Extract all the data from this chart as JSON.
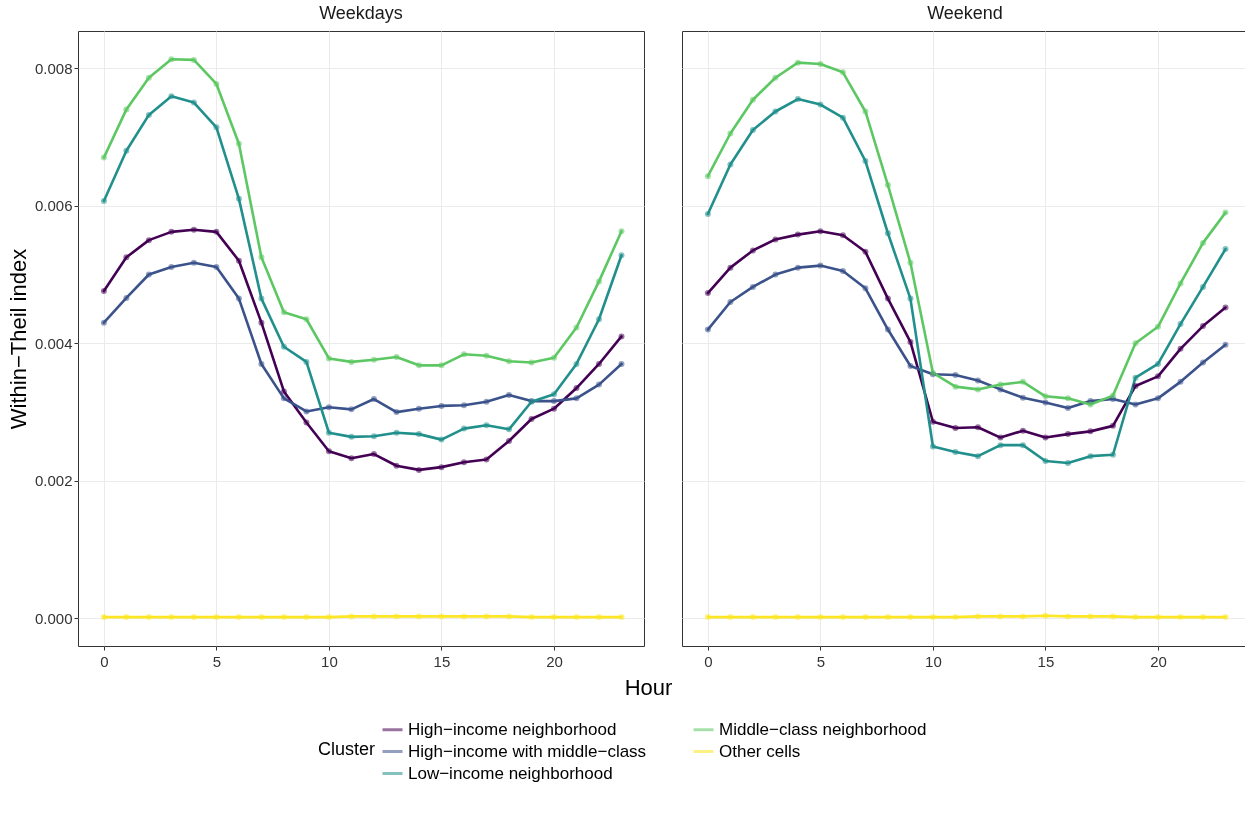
{
  "chart_data": [
    {
      "type": "line",
      "title": "Weekdays",
      "ylabel": "Within−Theil index",
      "xlabel": "Hour",
      "legend_title": "Cluster",
      "legend": "bottom",
      "grid": true,
      "marker": "circle",
      "line_style": "solid",
      "x": [
        0,
        1,
        2,
        3,
        4,
        5,
        6,
        7,
        8,
        9,
        10,
        11,
        12,
        13,
        14,
        15,
        16,
        17,
        18,
        19,
        20,
        21,
        22,
        23
      ],
      "xlim": [
        -1.15,
        24.0
      ],
      "xticks": [
        0,
        5,
        10,
        15,
        20
      ],
      "ylim": [
        -0.0004,
        0.00854
      ],
      "yticks": [
        {
          "value": 0,
          "label": "0.000"
        },
        {
          "value": 0.002,
          "label": "0.002"
        },
        {
          "value": 0.004,
          "label": "0.004"
        },
        {
          "value": 0.006,
          "label": "0.006"
        },
        {
          "value": 0.008,
          "label": "0.008"
        }
      ],
      "series": [
        {
          "name": "High−income neighborhood",
          "color": "#440154",
          "values": [
            0.00476,
            0.00525,
            0.0055,
            0.00562,
            0.00565,
            0.00562,
            0.0052,
            0.0043,
            0.0033,
            0.00285,
            0.00243,
            0.00233,
            0.00239,
            0.00222,
            0.00216,
            0.0022,
            0.00227,
            0.00231,
            0.00258,
            0.0029,
            0.00305,
            0.00335,
            0.0037,
            0.0041
          ]
        },
        {
          "name": "High−income with middle−class",
          "color": "#3b528b",
          "values": [
            0.0043,
            0.00466,
            0.005,
            0.00511,
            0.00517,
            0.00511,
            0.00465,
            0.0037,
            0.0032,
            0.00301,
            0.00307,
            0.00304,
            0.00319,
            0.003,
            0.00305,
            0.00309,
            0.0031,
            0.00315,
            0.00325,
            0.00316,
            0.00316,
            0.0032,
            0.0034,
            0.0037
          ]
        },
        {
          "name": "Low−income neighborhood",
          "color": "#21908c",
          "values": [
            0.00607,
            0.0068,
            0.00732,
            0.00759,
            0.0075,
            0.00714,
            0.0061,
            0.00465,
            0.00395,
            0.00373,
            0.0027,
            0.00264,
            0.00265,
            0.0027,
            0.00268,
            0.0026,
            0.00276,
            0.00281,
            0.00275,
            0.00315,
            0.00326,
            0.0037,
            0.00435,
            0.00528
          ]
        },
        {
          "name": "Middle−class neighborhood",
          "color": "#5dc863",
          "values": [
            0.0067,
            0.0074,
            0.00786,
            0.00813,
            0.00812,
            0.00777,
            0.0069,
            0.00525,
            0.00445,
            0.00435,
            0.00378,
            0.00373,
            0.00376,
            0.0038,
            0.00368,
            0.00368,
            0.00384,
            0.00382,
            0.00374,
            0.00372,
            0.00379,
            0.00423,
            0.0049,
            0.00563
          ]
        },
        {
          "name": "Other cells",
          "color": "#fde725",
          "values": [
            2e-05,
            2e-05,
            2e-05,
            2e-05,
            2e-05,
            2e-05,
            2e-05,
            2e-05,
            2e-05,
            2e-05,
            2e-05,
            3e-05,
            3e-05,
            3e-05,
            3e-05,
            3e-05,
            3e-05,
            3e-05,
            3e-05,
            2e-05,
            2e-05,
            2e-05,
            2e-05,
            2e-05
          ]
        }
      ]
    },
    {
      "type": "line",
      "title": "Weekend",
      "grid": true,
      "marker": "circle",
      "line_style": "solid",
      "tick_labels": "x",
      "x": [
        0,
        1,
        2,
        3,
        4,
        5,
        6,
        7,
        8,
        9,
        10,
        11,
        12,
        13,
        14,
        15,
        16,
        17,
        18,
        19,
        20,
        21,
        22,
        23
      ],
      "xlim": [
        -1.15,
        24.0
      ],
      "xticks": [
        0,
        5,
        10,
        15,
        20
      ],
      "ylim": [
        -0.0004,
        0.00854
      ],
      "yticks": [
        0,
        0.002,
        0.004,
        0.006,
        0.008
      ],
      "series": [
        {
          "name": "High−income neighborhood",
          "color": "#440154",
          "values": [
            0.00473,
            0.0051,
            0.00535,
            0.00551,
            0.00558,
            0.00563,
            0.00557,
            0.00533,
            0.00465,
            0.00402,
            0.00286,
            0.00277,
            0.00278,
            0.00263,
            0.00273,
            0.00263,
            0.00268,
            0.00272,
            0.0028,
            0.00338,
            0.00352,
            0.00392,
            0.00425,
            0.00452
          ]
        },
        {
          "name": "High−income with middle−class",
          "color": "#3b528b",
          "values": [
            0.0042,
            0.0046,
            0.00482,
            0.005,
            0.0051,
            0.00513,
            0.00505,
            0.0048,
            0.0042,
            0.00367,
            0.00355,
            0.00354,
            0.00346,
            0.00333,
            0.00321,
            0.00314,
            0.00306,
            0.00316,
            0.00319,
            0.00311,
            0.0032,
            0.00344,
            0.00372,
            0.00398
          ]
        },
        {
          "name": "Low−income neighborhood",
          "color": "#21908c",
          "values": [
            0.00588,
            0.0066,
            0.0071,
            0.00737,
            0.00755,
            0.00747,
            0.00728,
            0.00665,
            0.0056,
            0.00465,
            0.0025,
            0.00242,
            0.00236,
            0.00252,
            0.00252,
            0.00229,
            0.00226,
            0.00236,
            0.00238,
            0.0035,
            0.0037,
            0.00428,
            0.00482,
            0.00537
          ]
        },
        {
          "name": "Middle−class neighborhood",
          "color": "#5dc863",
          "values": [
            0.00643,
            0.00705,
            0.00754,
            0.00786,
            0.00808,
            0.00806,
            0.00794,
            0.00737,
            0.0063,
            0.00517,
            0.00357,
            0.00337,
            0.00333,
            0.0034,
            0.00344,
            0.00323,
            0.0032,
            0.00311,
            0.00324,
            0.004,
            0.00424,
            0.00487,
            0.00546,
            0.0059
          ]
        },
        {
          "name": "Other cells",
          "color": "#fde725",
          "values": [
            2e-05,
            2e-05,
            2e-05,
            2e-05,
            2e-05,
            2e-05,
            2e-05,
            2e-05,
            2e-05,
            2e-05,
            2e-05,
            2e-05,
            3e-05,
            3e-05,
            3e-05,
            4e-05,
            3e-05,
            3e-05,
            3e-05,
            2e-05,
            2e-05,
            2e-05,
            2e-05,
            2e-05
          ]
        }
      ]
    }
  ]
}
